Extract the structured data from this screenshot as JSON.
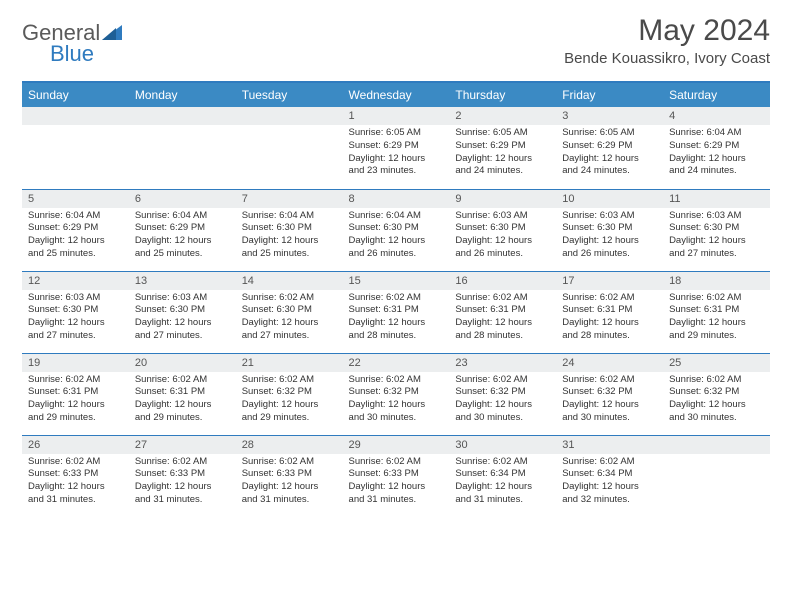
{
  "brand": {
    "general": "General",
    "blue": "Blue"
  },
  "title": "May 2024",
  "location": "Bende Kouassikro, Ivory Coast",
  "colors": {
    "header_bg": "#3b8ac4",
    "border": "#2f7bbf",
    "daynum_bg": "#eceeef",
    "text": "#4a4a4a"
  },
  "days_of_week": [
    "Sunday",
    "Monday",
    "Tuesday",
    "Wednesday",
    "Thursday",
    "Friday",
    "Saturday"
  ],
  "weeks": [
    [
      null,
      null,
      null,
      {
        "n": "1",
        "sr": "Sunrise: 6:05 AM",
        "ss": "Sunset: 6:29 PM",
        "dl": "Daylight: 12 hours and 23 minutes."
      },
      {
        "n": "2",
        "sr": "Sunrise: 6:05 AM",
        "ss": "Sunset: 6:29 PM",
        "dl": "Daylight: 12 hours and 24 minutes."
      },
      {
        "n": "3",
        "sr": "Sunrise: 6:05 AM",
        "ss": "Sunset: 6:29 PM",
        "dl": "Daylight: 12 hours and 24 minutes."
      },
      {
        "n": "4",
        "sr": "Sunrise: 6:04 AM",
        "ss": "Sunset: 6:29 PM",
        "dl": "Daylight: 12 hours and 24 minutes."
      }
    ],
    [
      {
        "n": "5",
        "sr": "Sunrise: 6:04 AM",
        "ss": "Sunset: 6:29 PM",
        "dl": "Daylight: 12 hours and 25 minutes."
      },
      {
        "n": "6",
        "sr": "Sunrise: 6:04 AM",
        "ss": "Sunset: 6:29 PM",
        "dl": "Daylight: 12 hours and 25 minutes."
      },
      {
        "n": "7",
        "sr": "Sunrise: 6:04 AM",
        "ss": "Sunset: 6:30 PM",
        "dl": "Daylight: 12 hours and 25 minutes."
      },
      {
        "n": "8",
        "sr": "Sunrise: 6:04 AM",
        "ss": "Sunset: 6:30 PM",
        "dl": "Daylight: 12 hours and 26 minutes."
      },
      {
        "n": "9",
        "sr": "Sunrise: 6:03 AM",
        "ss": "Sunset: 6:30 PM",
        "dl": "Daylight: 12 hours and 26 minutes."
      },
      {
        "n": "10",
        "sr": "Sunrise: 6:03 AM",
        "ss": "Sunset: 6:30 PM",
        "dl": "Daylight: 12 hours and 26 minutes."
      },
      {
        "n": "11",
        "sr": "Sunrise: 6:03 AM",
        "ss": "Sunset: 6:30 PM",
        "dl": "Daylight: 12 hours and 27 minutes."
      }
    ],
    [
      {
        "n": "12",
        "sr": "Sunrise: 6:03 AM",
        "ss": "Sunset: 6:30 PM",
        "dl": "Daylight: 12 hours and 27 minutes."
      },
      {
        "n": "13",
        "sr": "Sunrise: 6:03 AM",
        "ss": "Sunset: 6:30 PM",
        "dl": "Daylight: 12 hours and 27 minutes."
      },
      {
        "n": "14",
        "sr": "Sunrise: 6:02 AM",
        "ss": "Sunset: 6:30 PM",
        "dl": "Daylight: 12 hours and 27 minutes."
      },
      {
        "n": "15",
        "sr": "Sunrise: 6:02 AM",
        "ss": "Sunset: 6:31 PM",
        "dl": "Daylight: 12 hours and 28 minutes."
      },
      {
        "n": "16",
        "sr": "Sunrise: 6:02 AM",
        "ss": "Sunset: 6:31 PM",
        "dl": "Daylight: 12 hours and 28 minutes."
      },
      {
        "n": "17",
        "sr": "Sunrise: 6:02 AM",
        "ss": "Sunset: 6:31 PM",
        "dl": "Daylight: 12 hours and 28 minutes."
      },
      {
        "n": "18",
        "sr": "Sunrise: 6:02 AM",
        "ss": "Sunset: 6:31 PM",
        "dl": "Daylight: 12 hours and 29 minutes."
      }
    ],
    [
      {
        "n": "19",
        "sr": "Sunrise: 6:02 AM",
        "ss": "Sunset: 6:31 PM",
        "dl": "Daylight: 12 hours and 29 minutes."
      },
      {
        "n": "20",
        "sr": "Sunrise: 6:02 AM",
        "ss": "Sunset: 6:31 PM",
        "dl": "Daylight: 12 hours and 29 minutes."
      },
      {
        "n": "21",
        "sr": "Sunrise: 6:02 AM",
        "ss": "Sunset: 6:32 PM",
        "dl": "Daylight: 12 hours and 29 minutes."
      },
      {
        "n": "22",
        "sr": "Sunrise: 6:02 AM",
        "ss": "Sunset: 6:32 PM",
        "dl": "Daylight: 12 hours and 30 minutes."
      },
      {
        "n": "23",
        "sr": "Sunrise: 6:02 AM",
        "ss": "Sunset: 6:32 PM",
        "dl": "Daylight: 12 hours and 30 minutes."
      },
      {
        "n": "24",
        "sr": "Sunrise: 6:02 AM",
        "ss": "Sunset: 6:32 PM",
        "dl": "Daylight: 12 hours and 30 minutes."
      },
      {
        "n": "25",
        "sr": "Sunrise: 6:02 AM",
        "ss": "Sunset: 6:32 PM",
        "dl": "Daylight: 12 hours and 30 minutes."
      }
    ],
    [
      {
        "n": "26",
        "sr": "Sunrise: 6:02 AM",
        "ss": "Sunset: 6:33 PM",
        "dl": "Daylight: 12 hours and 31 minutes."
      },
      {
        "n": "27",
        "sr": "Sunrise: 6:02 AM",
        "ss": "Sunset: 6:33 PM",
        "dl": "Daylight: 12 hours and 31 minutes."
      },
      {
        "n": "28",
        "sr": "Sunrise: 6:02 AM",
        "ss": "Sunset: 6:33 PM",
        "dl": "Daylight: 12 hours and 31 minutes."
      },
      {
        "n": "29",
        "sr": "Sunrise: 6:02 AM",
        "ss": "Sunset: 6:33 PM",
        "dl": "Daylight: 12 hours and 31 minutes."
      },
      {
        "n": "30",
        "sr": "Sunrise: 6:02 AM",
        "ss": "Sunset: 6:34 PM",
        "dl": "Daylight: 12 hours and 31 minutes."
      },
      {
        "n": "31",
        "sr": "Sunrise: 6:02 AM",
        "ss": "Sunset: 6:34 PM",
        "dl": "Daylight: 12 hours and 32 minutes."
      },
      null
    ]
  ]
}
